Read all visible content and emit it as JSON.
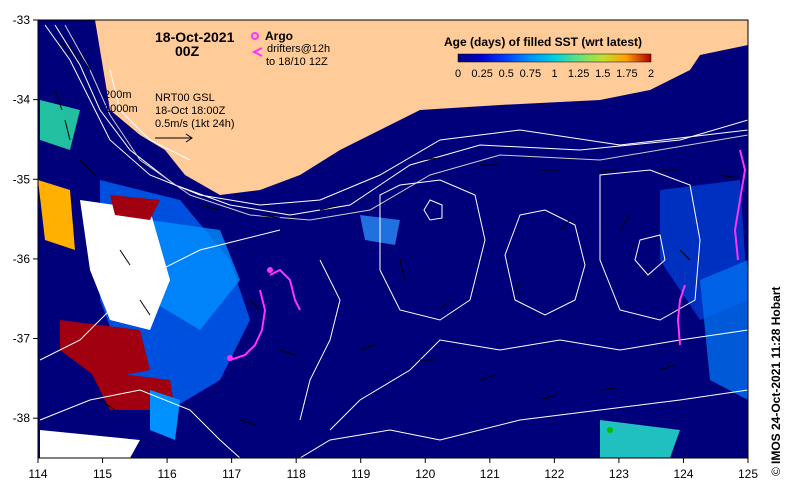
{
  "title": {
    "date": "18-Oct-2021",
    "hour": "00Z"
  },
  "legend_argo": {
    "argo_label": "Argo",
    "drifters_label": "drifters@12h",
    "drifters_to": "to 18/10 12Z",
    "argo_color": "#ff33ff",
    "drifter_color": "#ff33ff"
  },
  "colorbar": {
    "title": "Age (days) of filled SST (wrt latest)",
    "tick_labels": [
      "0",
      "0.25",
      "0.5",
      "0.75",
      "1",
      "1.25",
      "1.5",
      "1.75",
      "2"
    ],
    "colors": [
      "#000080",
      "#0000d0",
      "#0040ff",
      "#0090ff",
      "#00d0e0",
      "#40e0a0",
      "#a0e040",
      "#ffd000",
      "#ff7000",
      "#b00000"
    ]
  },
  "annotations": {
    "isobath_1": "200m",
    "isobath_2": "1000m",
    "product": "NRT00 GSL",
    "product_time": "18-Oct 18:00Z",
    "scale_label": "0.5m/s (1kt 24h)"
  },
  "credit": "IMOS 24-Oct-2021 11:28 Hobart",
  "axes": {
    "x_ticks": [
      "114",
      "115",
      "116",
      "117",
      "118",
      "119",
      "120",
      "121",
      "122",
      "123",
      "124",
      "125"
    ],
    "y_ticks": [
      "-33",
      "-34",
      "-35",
      "-36",
      "-37",
      "-38"
    ],
    "lon_range": [
      114,
      125
    ],
    "lat_range": [
      -38.5,
      -33
    ]
  },
  "colors": {
    "ocean": "#00007a",
    "land": "#ffcc99",
    "no_data": "#ffffff",
    "contour": "#ffffff"
  }
}
